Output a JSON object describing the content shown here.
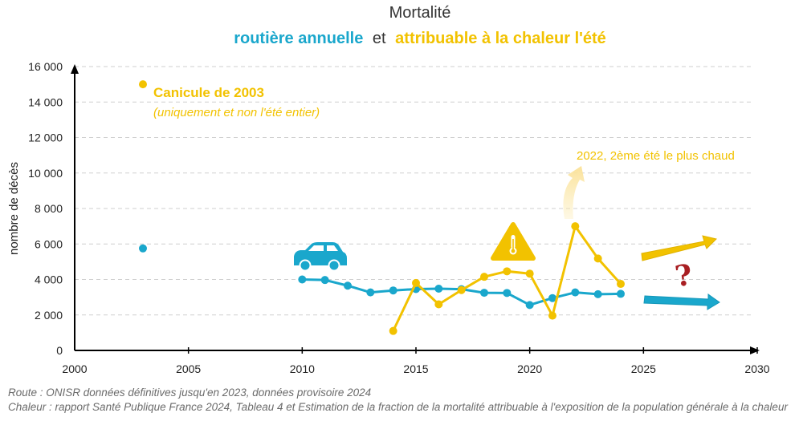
{
  "chart_data": {
    "type": "line",
    "title": "Mortalité",
    "subtitle": {
      "part1": "routière annuelle",
      "part2": "et",
      "part3": "attribuable à la chaleur l'été"
    },
    "ylabel": "nombre de décès",
    "xlim": [
      2000,
      2030
    ],
    "ylim": [
      0,
      16000
    ],
    "x_ticks": [
      2000,
      2005,
      2010,
      2015,
      2020,
      2025,
      2030
    ],
    "x_tick_labels": [
      "2000",
      "2005",
      "2010",
      "2015",
      "2020",
      "2025",
      "2030"
    ],
    "y_ticks": [
      0,
      2000,
      4000,
      6000,
      8000,
      10000,
      12000,
      14000,
      16000
    ],
    "y_tick_labels": [
      "0",
      "2 000",
      "4 000",
      "6 000",
      "8 000",
      "10 000",
      "12 000",
      "14 000",
      "16 000"
    ],
    "grid": true,
    "series": [
      {
        "name": "routière annuelle",
        "color": "#1aa7cc",
        "isolated": [
          {
            "x": 2003,
            "y": 5750
          }
        ],
        "x": [
          2010,
          2011,
          2012,
          2013,
          2014,
          2015,
          2016,
          2017,
          2018,
          2019,
          2020,
          2021,
          2022,
          2023,
          2024
        ],
        "y": [
          4000,
          3970,
          3650,
          3270,
          3380,
          3460,
          3480,
          3450,
          3250,
          3240,
          2560,
          2950,
          3270,
          3170,
          3190
        ]
      },
      {
        "name": "attribuable à la chaleur l'été",
        "color": "#f2c200",
        "isolated": [
          {
            "x": 2003,
            "y": 15000
          }
        ],
        "x": [
          2014,
          2015,
          2016,
          2017,
          2018,
          2019,
          2020,
          2021,
          2022,
          2023,
          2024
        ],
        "y": [
          1100,
          3800,
          2600,
          3400,
          4150,
          4460,
          4330,
          1960,
          7000,
          5180,
          3750
        ]
      }
    ],
    "annotations": {
      "canicule_title": "Canicule de 2003",
      "canicule_sub": "(uniquement et non l'été entier)",
      "hot_summer": "2022, 2ème été le plus chaud",
      "question": "?"
    },
    "icons": [
      "car-icon",
      "warning-thermometer-icon",
      "question-mark-icon"
    ]
  },
  "sources": {
    "route": "Route : ONISR données définitives jusqu'en 2023, données provisoire 2024",
    "chaleur": "Chaleur : rapport Santé Publique France 2024, Tableau 4 et Estimation de la fraction de la mortalité attribuable à l'exposition de la population générale à la chaleur"
  }
}
